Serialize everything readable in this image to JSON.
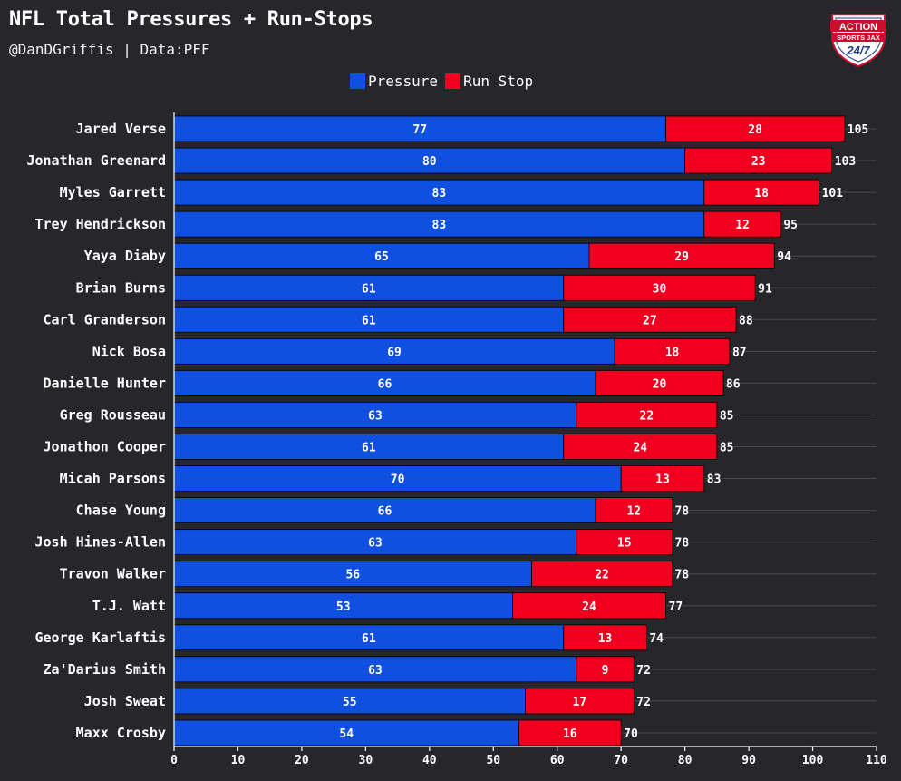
{
  "chart_data": {
    "type": "bar",
    "orientation": "horizontal",
    "stacked": true,
    "title": "NFL Total Pressures + Run-Stops",
    "subtitle": "@DanDGriffis | Data:PFF",
    "xlim": [
      0,
      110
    ],
    "xticks": [
      0,
      10,
      20,
      30,
      40,
      50,
      60,
      70,
      80,
      90,
      100,
      110
    ],
    "grid": true,
    "legend_position": "top-center",
    "categories": [
      "Jared Verse",
      "Jonathan Greenard",
      "Myles Garrett",
      "Trey Hendrickson",
      "Yaya Diaby",
      "Brian Burns",
      "Carl Granderson",
      "Nick Bosa",
      "Danielle Hunter",
      "Greg Rousseau",
      "Jonathon Cooper",
      "Micah Parsons",
      "Chase Young",
      "Josh Hines-Allen",
      "Travon Walker",
      "T.J. Watt",
      "George Karlaftis",
      "Za'Darius Smith",
      "Josh Sweat",
      "Maxx Crosby"
    ],
    "series": [
      {
        "name": "Pressure",
        "color": "#1050e0",
        "values": [
          77,
          80,
          83,
          83,
          65,
          61,
          61,
          69,
          66,
          63,
          61,
          70,
          66,
          63,
          56,
          53,
          61,
          63,
          55,
          54
        ]
      },
      {
        "name": "Run Stop",
        "color": "#f0001e",
        "values": [
          28,
          23,
          18,
          12,
          29,
          30,
          27,
          18,
          20,
          22,
          24,
          13,
          12,
          15,
          22,
          24,
          13,
          9,
          17,
          16
        ]
      }
    ],
    "totals": [
      105,
      103,
      101,
      95,
      94,
      91,
      88,
      87,
      86,
      85,
      85,
      83,
      78,
      78,
      78,
      77,
      74,
      72,
      72,
      70
    ]
  },
  "logo": {
    "line1": "ACTION",
    "line2": "SPORTS JAX",
    "line3": "24/7",
    "colors": {
      "red": "#c8102e",
      "blue": "#1f3b8c",
      "white": "#ffffff"
    }
  },
  "colors": {
    "background": "#26262b",
    "grid": "#4a4a50",
    "text": "#ffffff"
  }
}
